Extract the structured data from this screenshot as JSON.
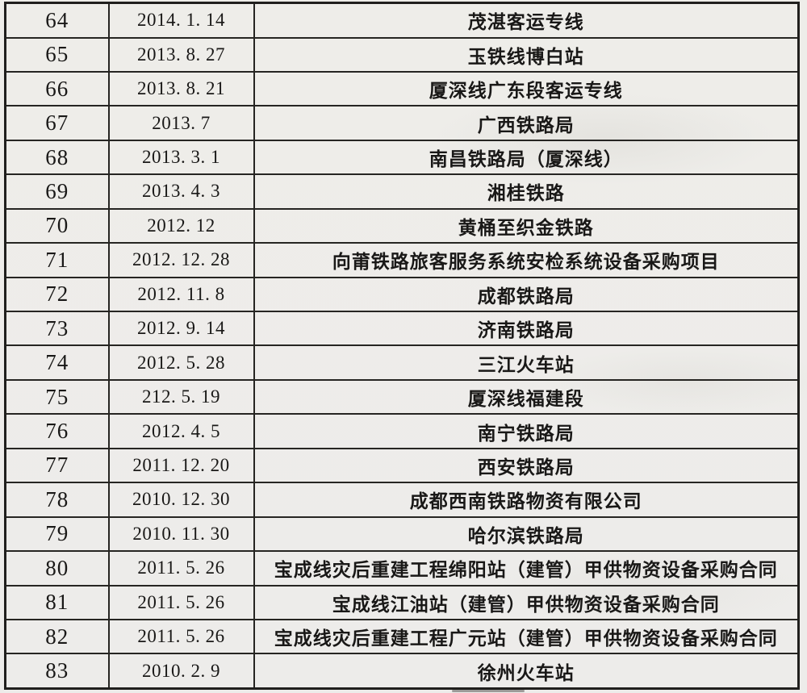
{
  "document": {
    "type": "scanned-contract-list-table",
    "paper_color": "#edece9",
    "border_color": "#262522",
    "text_color": "#191817"
  },
  "table": {
    "columns": [
      {
        "id": "index",
        "role": "serial-number"
      },
      {
        "id": "date",
        "role": "date"
      },
      {
        "id": "description",
        "role": "project-or-entity-name"
      }
    ],
    "rows": [
      {
        "index": "64",
        "date": "2014. 1. 14",
        "description": "茂湛客运专线"
      },
      {
        "index": "65",
        "date": "2013. 8. 27",
        "description": "玉铁线博白站"
      },
      {
        "index": "66",
        "date": "2013. 8. 21",
        "description": "厦深线广东段客运专线"
      },
      {
        "index": "67",
        "date": "2013. 7",
        "description": "广西铁路局"
      },
      {
        "index": "68",
        "date": "2013. 3. 1",
        "description": "南昌铁路局（厦深线）"
      },
      {
        "index": "69",
        "date": "2013. 4. 3",
        "description": "湘桂铁路"
      },
      {
        "index": "70",
        "date": "2012. 12",
        "description": "黄桶至织金铁路"
      },
      {
        "index": "71",
        "date": "2012. 12. 28",
        "description": "向莆铁路旅客服务系统安检系统设备采购项目"
      },
      {
        "index": "72",
        "date": "2012. 11. 8",
        "description": "成都铁路局"
      },
      {
        "index": "73",
        "date": "2012. 9. 14",
        "description": "济南铁路局"
      },
      {
        "index": "74",
        "date": "2012. 5. 28",
        "description": "三江火车站"
      },
      {
        "index": "75",
        "date": "212. 5. 19",
        "description": "厦深线福建段"
      },
      {
        "index": "76",
        "date": "2012. 4. 5",
        "description": "南宁铁路局"
      },
      {
        "index": "77",
        "date": "2011. 12. 20",
        "description": "西安铁路局"
      },
      {
        "index": "78",
        "date": "2010. 12. 30",
        "description": "成都西南铁路物资有限公司"
      },
      {
        "index": "79",
        "date": "2010. 11. 30",
        "description": "哈尔滨铁路局"
      },
      {
        "index": "80",
        "date": "2011. 5. 26",
        "description": "宝成线灾后重建工程绵阳站（建管）甲供物资设备采购合同"
      },
      {
        "index": "81",
        "date": "2011. 5. 26",
        "description": "宝成线江油站（建管）甲供物资设备采购合同"
      },
      {
        "index": "82",
        "date": "2011. 5. 26",
        "description": "宝成线灾后重建工程广元站（建管）甲供物资设备采购合同"
      },
      {
        "index": "83",
        "date": "2010. 2. 9",
        "description": "徐州火车站"
      }
    ]
  }
}
